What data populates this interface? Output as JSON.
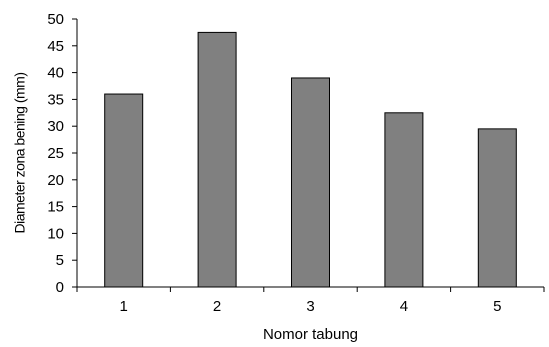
{
  "chart_data": {
    "type": "bar",
    "title": "",
    "xlabel": "Nomor tabung",
    "ylabel": "Diameter zona bening (mm)",
    "categories": [
      "1",
      "2",
      "3",
      "4",
      "5"
    ],
    "values": [
      36,
      47.5,
      39,
      32.5,
      29.5
    ],
    "ylim": [
      0,
      50
    ],
    "yticks": [
      "0",
      "5",
      "10",
      "15",
      "20",
      "25",
      "30",
      "35",
      "40",
      "45",
      "50"
    ],
    "grid": false,
    "legend": "none",
    "colors": {
      "bar_fill": "#808080",
      "bar_stroke": "#000000",
      "axis": "#000000"
    }
  }
}
